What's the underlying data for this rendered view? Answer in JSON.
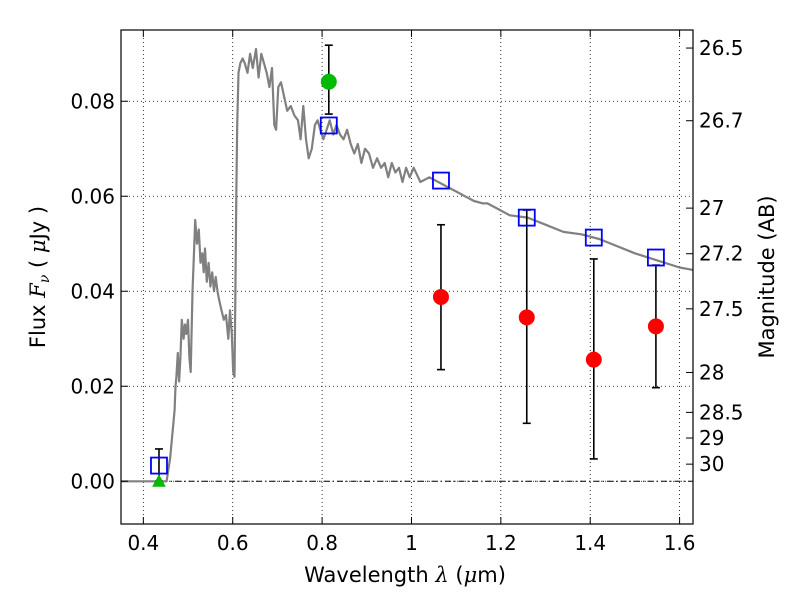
{
  "chart_data": {
    "type": "scatter",
    "title": "",
    "xlabel_prefix": "Wavelength",
    "xlabel_symbol": "λ",
    "xlabel_unit_open": "(",
    "xlabel_unit_mu": "μ",
    "xlabel_unit_rest": "m)",
    "ylabel_prefix": "Flux",
    "ylabel_symbol": "F",
    "ylabel_subscript": "ν",
    "ylabel_unit_open": "(",
    "ylabel_unit_mu": "μ",
    "ylabel_unit_rest": "Jy )",
    "y2label": "Magnitude (AB)",
    "xlim": [
      0.35,
      1.63
    ],
    "ylim": [
      -0.009,
      0.095
    ],
    "grid": true,
    "x_ticks": [
      {
        "value": 0.4,
        "label": "0.4"
      },
      {
        "value": 0.6,
        "label": "0.6"
      },
      {
        "value": 0.8,
        "label": "0.8"
      },
      {
        "value": 1.0,
        "label": "1"
      },
      {
        "value": 1.2,
        "label": "1.2"
      },
      {
        "value": 1.4,
        "label": "1.4"
      },
      {
        "value": 1.6,
        "label": "1.6"
      }
    ],
    "y_ticks": [
      {
        "value": 0.0,
        "label": "0.00"
      },
      {
        "value": 0.02,
        "label": "0.02"
      },
      {
        "value": 0.04,
        "label": "0.04"
      },
      {
        "value": 0.06,
        "label": "0.06"
      },
      {
        "value": 0.08,
        "label": "0.08"
      }
    ],
    "y2_ticks": [
      {
        "flux": 0.0912,
        "label": "26.5"
      },
      {
        "flux": 0.0759,
        "label": "26.7"
      },
      {
        "flux": 0.0575,
        "label": "27"
      },
      {
        "flux": 0.0479,
        "label": "27.2"
      },
      {
        "flux": 0.0363,
        "label": "27.5"
      },
      {
        "flux": 0.0229,
        "label": "28"
      },
      {
        "flux": 0.0145,
        "label": "28.5"
      },
      {
        "flux": 0.0091,
        "label": "29"
      },
      {
        "flux": 0.0036,
        "label": "30"
      }
    ],
    "zero_line": 0.0,
    "model_spectrum": {
      "color": "#808080",
      "x": [
        0.35,
        0.43,
        0.452,
        0.46,
        0.465,
        0.47,
        0.472,
        0.474,
        0.477,
        0.48,
        0.483,
        0.486,
        0.49,
        0.493,
        0.496,
        0.5,
        0.503,
        0.506,
        0.51,
        0.513,
        0.516,
        0.52,
        0.524,
        0.528,
        0.532,
        0.535,
        0.538,
        0.542,
        0.546,
        0.55,
        0.554,
        0.558,
        0.562,
        0.566,
        0.57,
        0.575,
        0.58,
        0.585,
        0.59,
        0.594,
        0.598,
        0.601,
        0.604,
        0.606,
        0.608,
        0.61,
        0.613,
        0.617,
        0.622,
        0.627,
        0.633,
        0.639,
        0.645,
        0.652,
        0.658,
        0.664,
        0.67,
        0.676,
        0.682,
        0.688,
        0.693,
        0.697,
        0.702,
        0.708,
        0.715,
        0.722,
        0.73,
        0.738,
        0.746,
        0.752,
        0.758,
        0.764,
        0.77,
        0.777,
        0.784,
        0.79,
        0.796,
        0.803,
        0.81,
        0.817,
        0.825,
        0.832,
        0.84,
        0.848,
        0.856,
        0.864,
        0.872,
        0.88,
        0.888,
        0.896,
        0.905,
        0.914,
        0.923,
        0.932,
        0.94,
        0.948,
        0.956,
        0.964,
        0.972,
        0.98,
        0.988,
        0.996,
        1.005,
        1.02,
        1.04,
        1.06,
        1.08,
        1.1,
        1.12,
        1.14,
        1.16,
        1.17,
        1.19,
        1.22,
        1.26,
        1.3,
        1.34,
        1.38,
        1.42,
        1.46,
        1.5,
        1.55,
        1.6,
        1.63
      ],
      "y": [
        0.0,
        0.0,
        0.0,
        0.005,
        0.01,
        0.015,
        0.02,
        0.022,
        0.027,
        0.021,
        0.026,
        0.034,
        0.03,
        0.033,
        0.031,
        0.034,
        0.026,
        0.023,
        0.04,
        0.047,
        0.055,
        0.05,
        0.053,
        0.046,
        0.048,
        0.044,
        0.049,
        0.042,
        0.046,
        0.041,
        0.044,
        0.04,
        0.043,
        0.04,
        0.038,
        0.036,
        0.034,
        0.035,
        0.03,
        0.036,
        0.031,
        0.023,
        0.022,
        0.04,
        0.06,
        0.075,
        0.086,
        0.088,
        0.089,
        0.088,
        0.086,
        0.09,
        0.087,
        0.091,
        0.085,
        0.09,
        0.088,
        0.086,
        0.083,
        0.087,
        0.075,
        0.074,
        0.083,
        0.084,
        0.081,
        0.078,
        0.079,
        0.077,
        0.076,
        0.072,
        0.079,
        0.072,
        0.068,
        0.07,
        0.075,
        0.076,
        0.074,
        0.072,
        0.074,
        0.076,
        0.073,
        0.075,
        0.073,
        0.072,
        0.074,
        0.071,
        0.069,
        0.071,
        0.067,
        0.07,
        0.069,
        0.066,
        0.068,
        0.066,
        0.067,
        0.064,
        0.067,
        0.065,
        0.066,
        0.063,
        0.066,
        0.064,
        0.066,
        0.063,
        0.064,
        0.063,
        0.062,
        0.061,
        0.06,
        0.059,
        0.0585,
        0.0585,
        0.0575,
        0.056,
        0.0555,
        0.054,
        0.0525,
        0.052,
        0.051,
        0.0495,
        0.048,
        0.0465,
        0.045,
        0.0445
      ]
    },
    "series": [
      {
        "marker": "square",
        "color": "#0000ff",
        "x": [
          0.435,
          0.815,
          1.066,
          1.258,
          1.408,
          1.547
        ],
        "y": [
          0.0033,
          0.0749,
          0.0633,
          0.0555,
          0.0513,
          0.0471
        ]
      },
      {
        "marker": "circle",
        "color": "#ff0000",
        "x": [
          1.066,
          1.258,
          1.408,
          1.547
        ],
        "y": [
          0.0388,
          0.0345,
          0.0256,
          0.0326
        ],
        "yerr_low": [
          0.0235,
          0.0122,
          0.0047,
          0.0197
        ],
        "yerr_high": [
          0.054,
          0.0571,
          0.0468,
          0.0455
        ]
      },
      {
        "marker": "circle",
        "color": "#00bb00",
        "x": [
          0.815
        ],
        "y": [
          0.0841
        ],
        "yerr_low": [
          0.0773
        ],
        "yerr_high": [
          0.0918
        ]
      },
      {
        "marker": "triangle",
        "color": "#00bb00",
        "x": [
          0.435
        ],
        "y": [
          0.0
        ],
        "yerr_low": [
          0.0
        ],
        "yerr_high": [
          0.0068
        ]
      }
    ]
  }
}
